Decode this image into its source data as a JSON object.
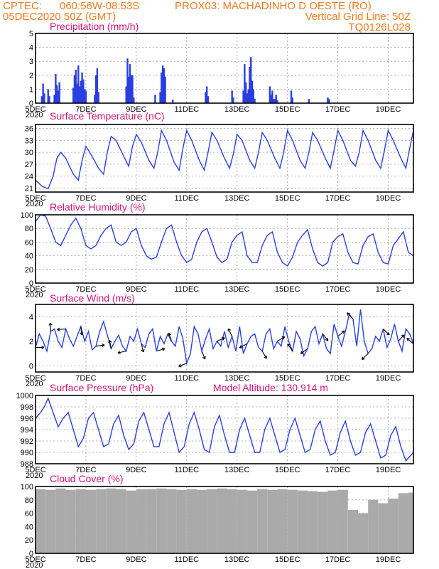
{
  "header": {
    "source": "CPTEC:",
    "coords": "060:56W-08:53S",
    "station": "PROX03: MACHADINHO D OESTE (RO)",
    "run": "05DEC2020 50Z (GMT)",
    "grid_note": "Vertical Grid Line: 50Z",
    "model_code": "TQ0126L028"
  },
  "x_axis": {
    "labels": [
      "5DEC",
      "7DEC",
      "9DEC",
      "11DEC",
      "13DEC",
      "15DEC",
      "17DEC",
      "19DEC"
    ],
    "year_label": "2020",
    "days": 15
  },
  "colors": {
    "series": "#2a3fe0",
    "cloud": "#aaaaaa",
    "title": "#d4147a",
    "header": "#f07a1e"
  },
  "chart_data": [
    {
      "type": "bar",
      "title": "Precipitation (mm/h)",
      "ylim": [
        0,
        5
      ],
      "yticks": [
        "0",
        "1",
        "2",
        "3",
        "4",
        "5"
      ],
      "x_unit": "days since 5DEC 00Z",
      "x": [
        0.25,
        0.3,
        0.35,
        0.5,
        0.55,
        0.75,
        0.8,
        0.85,
        0.9,
        0.95,
        1.5,
        1.55,
        1.6,
        1.65,
        1.7,
        1.75,
        1.8,
        1.85,
        1.9,
        1.95,
        2.0,
        2.35,
        2.4,
        2.45,
        2.5,
        3.6,
        3.65,
        3.7,
        3.75,
        3.8,
        3.85,
        3.9,
        4.75,
        4.95,
        5.0,
        5.05,
        5.1,
        5.15,
        5.45,
        6.75,
        6.8,
        6.85,
        7.8,
        7.85,
        8.25,
        8.3,
        8.35,
        8.4,
        8.45,
        8.5,
        8.55,
        8.6,
        8.65,
        8.7,
        9.3,
        9.35,
        9.4,
        9.45,
        9.5,
        9.55,
        9.6,
        10.15,
        10.2,
        10.85,
        11.6,
        11.65
      ],
      "values": [
        0.5,
        1.4,
        0.7,
        1.0,
        0.5,
        0.6,
        2.1,
        1.3,
        0.9,
        1.5,
        1.1,
        2.0,
        2.4,
        1.4,
        2.7,
        1.2,
        1.6,
        2.2,
        1.7,
        1.0,
        0.9,
        0.6,
        2.0,
        2.5,
        0.8,
        1.2,
        3.2,
        1.9,
        2.8,
        2.0,
        2.0,
        0.4,
        0.6,
        0.8,
        2.2,
        2.7,
        2.5,
        1.9,
        0.25,
        0.8,
        1.2,
        0.5,
        0.9,
        0.4,
        0.9,
        2.8,
        1.5,
        0.7,
        1.0,
        2.6,
        3.3,
        1.6,
        1.0,
        0.3,
        1.2,
        0.6,
        0.9,
        0.3,
        0.3,
        0.6,
        0.2,
        0.9,
        0.4,
        0.3,
        0.4,
        0.3
      ]
    },
    {
      "type": "line",
      "title": "Surface Temperature (nC)",
      "ylim": [
        20,
        37
      ],
      "yticks": [
        "21",
        "24",
        "27",
        "30",
        "33",
        "36"
      ],
      "ytick_values": [
        21,
        24,
        27,
        30,
        33,
        36
      ],
      "x_unit": "days since 5DEC 00Z",
      "x": [
        0,
        0.25,
        0.5,
        0.7,
        0.85,
        1.0,
        1.2,
        1.5,
        1.7,
        1.85,
        2.0,
        2.2,
        2.5,
        2.7,
        2.85,
        3.0,
        3.2,
        3.5,
        3.7,
        3.85,
        4.0,
        4.2,
        4.5,
        4.7,
        4.85,
        5.0,
        5.2,
        5.5,
        5.7,
        5.85,
        6.0,
        6.2,
        6.5,
        6.7,
        6.85,
        7.0,
        7.2,
        7.5,
        7.7,
        7.85,
        8.0,
        8.2,
        8.5,
        8.7,
        8.85,
        9.0,
        9.2,
        9.5,
        9.7,
        9.85,
        10.0,
        10.2,
        10.5,
        10.7,
        10.85,
        11.0,
        11.2,
        11.5,
        11.7,
        11.85,
        12.0,
        12.2,
        12.5,
        12.7,
        12.85,
        13.0,
        13.2,
        13.5,
        13.7,
        13.85,
        14.0,
        14.2,
        14.5,
        14.7,
        14.85,
        15.0
      ],
      "values": [
        23,
        21.5,
        20.8,
        24,
        28.5,
        30,
        28.5,
        24.5,
        23,
        28,
        31.5,
        29.5,
        26,
        24.5,
        30,
        34,
        33,
        29,
        26.5,
        31.5,
        34.5,
        32.5,
        28,
        26,
        30,
        35.5,
        33,
        27.5,
        25.5,
        31,
        35.5,
        33,
        28,
        25.5,
        30,
        35,
        33,
        28.5,
        26,
        29.5,
        34.5,
        33,
        28,
        26,
        30,
        35,
        33,
        28.5,
        26,
        30,
        35.5,
        33,
        28,
        26,
        30,
        35,
        33,
        28.5,
        26,
        30.5,
        35.5,
        33,
        28,
        26.5,
        30,
        35.5,
        33,
        28,
        26,
        30.5,
        35.5,
        33,
        28.5,
        26,
        31,
        35.5
      ]
    },
    {
      "type": "line",
      "title": "Relative Humidity (%)",
      "ylim": [
        0,
        100
      ],
      "yticks": [
        "0",
        "20",
        "40",
        "60",
        "80",
        "100"
      ],
      "ytick_values": [
        0,
        20,
        40,
        60,
        80,
        100
      ],
      "x_unit": "days since 5DEC 00Z",
      "x": [
        0,
        0.2,
        0.4,
        0.6,
        0.8,
        1.0,
        1.2,
        1.4,
        1.6,
        1.8,
        2.0,
        2.2,
        2.4,
        2.6,
        2.8,
        3.0,
        3.2,
        3.4,
        3.6,
        3.8,
        4.0,
        4.2,
        4.4,
        4.6,
        4.8,
        5.0,
        5.2,
        5.4,
        5.6,
        5.8,
        6.0,
        6.2,
        6.4,
        6.6,
        6.8,
        7.0,
        7.2,
        7.4,
        7.6,
        7.8,
        8.0,
        8.2,
        8.4,
        8.6,
        8.8,
        9.0,
        9.2,
        9.4,
        9.6,
        9.8,
        10.0,
        10.2,
        10.4,
        10.6,
        10.8,
        11.0,
        11.2,
        11.4,
        11.6,
        11.8,
        12.0,
        12.2,
        12.4,
        12.6,
        12.8,
        13.0,
        13.2,
        13.4,
        13.6,
        13.8,
        14.0,
        14.2,
        14.4,
        14.6,
        14.8,
        15.0
      ],
      "values": [
        90,
        100,
        98,
        80,
        60,
        55,
        70,
        85,
        95,
        80,
        55,
        50,
        55,
        70,
        80,
        85,
        60,
        55,
        60,
        75,
        80,
        55,
        40,
        35,
        38,
        60,
        80,
        85,
        60,
        40,
        30,
        35,
        60,
        75,
        80,
        60,
        38,
        30,
        35,
        60,
        70,
        75,
        40,
        30,
        30,
        55,
        70,
        75,
        45,
        30,
        25,
        38,
        60,
        70,
        78,
        50,
        30,
        25,
        30,
        60,
        68,
        72,
        45,
        30,
        28,
        55,
        68,
        72,
        45,
        30,
        28,
        55,
        65,
        75,
        45,
        40
      ]
    },
    {
      "type": "line",
      "title": "Surface Wind (m/s)",
      "ylim": [
        -0.5,
        5
      ],
      "yticks": [
        "0",
        "2",
        "4"
      ],
      "ytick_values": [
        0,
        2,
        4
      ],
      "x_unit": "days since 5DEC 00Z",
      "x": [
        0,
        0.15,
        0.3,
        0.45,
        0.6,
        0.75,
        0.9,
        1.05,
        1.2,
        1.35,
        1.5,
        1.65,
        1.8,
        1.95,
        2.1,
        2.25,
        2.4,
        2.55,
        2.7,
        2.85,
        3.0,
        3.15,
        3.3,
        3.45,
        3.6,
        3.75,
        3.9,
        4.05,
        4.2,
        4.35,
        4.5,
        4.65,
        4.8,
        4.95,
        5.1,
        5.25,
        5.4,
        5.55,
        5.7,
        5.85,
        6.0,
        6.15,
        6.3,
        6.45,
        6.6,
        6.75,
        6.9,
        7.05,
        7.2,
        7.35,
        7.5,
        7.65,
        7.8,
        7.95,
        8.1,
        8.25,
        8.4,
        8.55,
        8.7,
        8.85,
        9.0,
        9.15,
        9.3,
        9.45,
        9.6,
        9.75,
        9.9,
        10.05,
        10.2,
        10.35,
        10.5,
        10.65,
        10.8,
        10.95,
        11.1,
        11.25,
        11.4,
        11.55,
        11.7,
        11.85,
        12.0,
        12.15,
        12.3,
        12.45,
        12.6,
        12.75,
        12.9,
        13.05,
        13.2,
        13.35,
        13.5,
        13.65,
        13.8,
        13.95,
        14.1,
        14.25,
        14.4,
        14.55,
        14.7,
        14.85,
        15.0
      ],
      "values": [
        1.5,
        2.6,
        2.0,
        1.2,
        2.8,
        3.0,
        2.0,
        1.5,
        3.0,
        2.2,
        1.6,
        2.4,
        3.2,
        2.0,
        2.8,
        1.3,
        1.6,
        2.8,
        3.6,
        2.5,
        1.4,
        2.0,
        2.5,
        1.6,
        1.2,
        2.4,
        2.0,
        3.0,
        1.8,
        1.5,
        2.6,
        3.0,
        1.2,
        2.4,
        1.8,
        2.6,
        2.0,
        1.6,
        3.2,
        2.2,
        0.2,
        1.0,
        3.2,
        2.6,
        1.2,
        2.2,
        3.0,
        1.4,
        2.0,
        1.6,
        2.8,
        1.5,
        2.4,
        1.2,
        3.2,
        1.0,
        1.8,
        2.4,
        2.6,
        1.5,
        1.2,
        2.6,
        3.0,
        1.4,
        2.0,
        1.6,
        3.2,
        2.0,
        1.2,
        2.8,
        2.2,
        0.8,
        1.4,
        2.8,
        3.2,
        1.8,
        2.6,
        1.4,
        1.0,
        3.4,
        2.4,
        1.6,
        2.8,
        4.2,
        3.8,
        1.6,
        4.6,
        2.0,
        1.0,
        1.4,
        2.4,
        2.0,
        3.0,
        1.5,
        2.2,
        3.4,
        2.0,
        1.2,
        3.0,
        2.6,
        1.8
      ]
    },
    {
      "type": "line",
      "title": "Surface Pressure (hPa)",
      "annotation": "Model Altitude: 130.914  m",
      "ylim": [
        988,
        1000
      ],
      "yticks": [
        "988",
        "990",
        "992",
        "994",
        "996",
        "998",
        "1000"
      ],
      "ytick_values": [
        988,
        990,
        992,
        994,
        996,
        998,
        1000
      ],
      "x_unit": "days since 5DEC 00Z",
      "x": [
        0,
        0.2,
        0.35,
        0.5,
        0.7,
        0.9,
        1.1,
        1.3,
        1.5,
        1.7,
        1.9,
        2.1,
        2.3,
        2.5,
        2.7,
        2.9,
        3.1,
        3.3,
        3.5,
        3.7,
        3.9,
        4.1,
        4.3,
        4.5,
        4.7,
        4.9,
        5.1,
        5.3,
        5.5,
        5.7,
        5.9,
        6.1,
        6.3,
        6.5,
        6.7,
        6.9,
        7.1,
        7.3,
        7.5,
        7.7,
        7.9,
        8.1,
        8.3,
        8.5,
        8.7,
        8.9,
        9.1,
        9.3,
        9.5,
        9.7,
        9.9,
        10.1,
        10.3,
        10.5,
        10.7,
        10.9,
        11.1,
        11.3,
        11.5,
        11.7,
        11.9,
        12.1,
        12.3,
        12.5,
        12.7,
        12.9,
        13.1,
        13.3,
        13.5,
        13.7,
        13.9,
        14.1,
        14.3,
        14.5,
        14.7,
        14.9,
        15.0
      ],
      "values": [
        996,
        997,
        998,
        999.5,
        997,
        994.5,
        996,
        997,
        994,
        991,
        992.5,
        996,
        997,
        994,
        991,
        991.5,
        995,
        996.5,
        993,
        990.5,
        991.5,
        995.5,
        997,
        994,
        991,
        991,
        995,
        997,
        993.5,
        990,
        991,
        995,
        997,
        994,
        990.5,
        990,
        994.5,
        996.5,
        993,
        990,
        990,
        994,
        996,
        993,
        990,
        990,
        994,
        996,
        993,
        990,
        990.5,
        994,
        996,
        993,
        990,
        990.5,
        994,
        995.5,
        992,
        989.5,
        990,
        993.5,
        995.5,
        992,
        989.5,
        990,
        993.5,
        995,
        992,
        989,
        989.5,
        993,
        994.5,
        991,
        988.5,
        989.5,
        990
      ]
    },
    {
      "type": "area",
      "title": "Cloud Cover (%)",
      "ylim": [
        0,
        100
      ],
      "yticks": [
        "0",
        "20",
        "40",
        "60",
        "80",
        "100"
      ],
      "ytick_values": [
        0,
        20,
        40,
        60,
        80,
        100
      ],
      "x_unit": "days since 5DEC 00Z",
      "x": [
        0,
        0.4,
        0.8,
        1.2,
        1.6,
        2.0,
        2.4,
        2.8,
        3.2,
        3.6,
        4.0,
        4.4,
        4.8,
        5.2,
        5.6,
        6.0,
        6.4,
        6.8,
        7.2,
        7.6,
        8.0,
        8.4,
        8.8,
        9.2,
        9.6,
        10.0,
        10.4,
        10.8,
        11.2,
        11.6,
        12.0,
        12.4,
        12.8,
        13.2,
        13.6,
        14.0,
        14.4,
        14.8,
        15.0
      ],
      "values": [
        96,
        95,
        97,
        95,
        96,
        95,
        96,
        97,
        96,
        94,
        96,
        96,
        97,
        96,
        95,
        96,
        95,
        96,
        97,
        96,
        95,
        94,
        96,
        95,
        96,
        95,
        94,
        93,
        92,
        94,
        95,
        65,
        60,
        80,
        75,
        82,
        90,
        91,
        92
      ]
    }
  ]
}
